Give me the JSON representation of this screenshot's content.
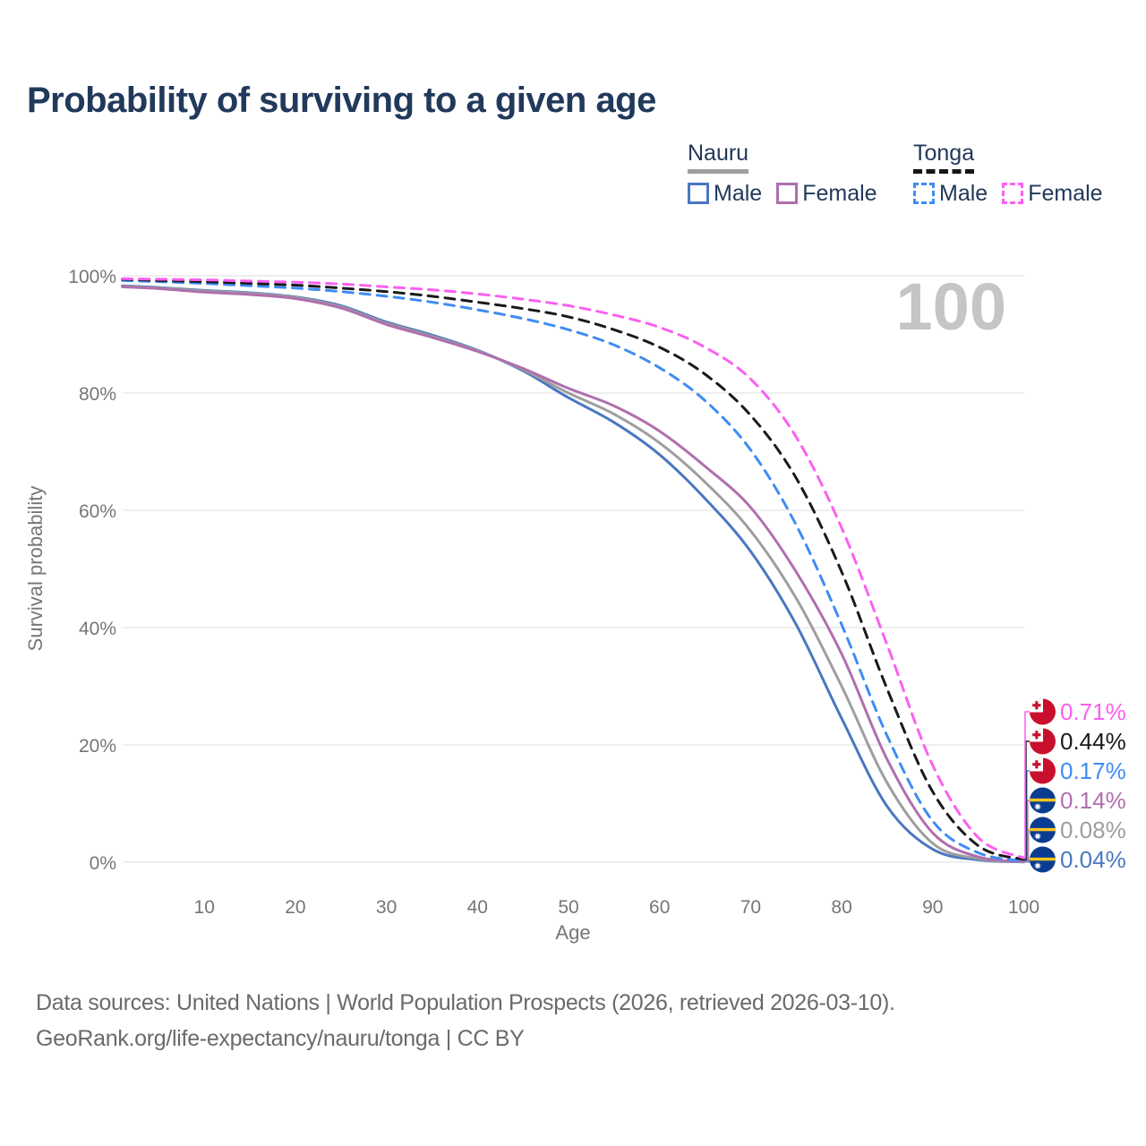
{
  "title": "Probability of surviving to a given age",
  "watermark": "100",
  "legend": {
    "groups": [
      {
        "name": "Nauru",
        "line_style": "solid",
        "underline_color": "#9e9e9e",
        "items": [
          {
            "label": "Male",
            "color": "#4a77c0"
          },
          {
            "label": "Female",
            "color": "#b06fae"
          }
        ]
      },
      {
        "name": "Tonga",
        "line_style": "dashed",
        "underline_color": "#161616",
        "items": [
          {
            "label": "Male",
            "color": "#3f8cf4"
          },
          {
            "label": "Female",
            "color": "#fa60f0"
          }
        ]
      }
    ]
  },
  "chart_data": {
    "type": "line",
    "title": "Probability of surviving to a given age",
    "xlabel": "Age",
    "ylabel": "Survival probability",
    "xlim": [
      1,
      100
    ],
    "ylim": [
      0,
      100
    ],
    "grid": "horizontal",
    "legend_position": "top-right",
    "x_ticks": [
      10,
      20,
      30,
      40,
      50,
      60,
      70,
      80,
      90,
      100
    ],
    "y_ticks": [
      {
        "value": 0,
        "label": "0%"
      },
      {
        "value": 20,
        "label": "20%"
      },
      {
        "value": 40,
        "label": "40%"
      },
      {
        "value": 60,
        "label": "60%"
      },
      {
        "value": 80,
        "label": "80%"
      },
      {
        "value": 100,
        "label": "100%"
      }
    ],
    "ages": [
      1,
      5,
      10,
      15,
      20,
      25,
      30,
      35,
      40,
      45,
      50,
      55,
      60,
      65,
      70,
      75,
      80,
      85,
      90,
      95,
      100
    ],
    "series": [
      {
        "name": "Nauru — Male",
        "country": "Nauru",
        "sex": "Male",
        "color": "#4a77c0",
        "dash": "solid",
        "flag": "nauru",
        "end_label": "0.04%",
        "row": 5,
        "values": [
          98.3,
          98.0,
          97.5,
          97.1,
          96.4,
          94.9,
          92.1,
          89.9,
          87.3,
          83.8,
          79.2,
          75.0,
          69.5,
          62.0,
          53.0,
          40.5,
          24.5,
          9.5,
          2.2,
          0.4,
          0.04
        ]
      },
      {
        "name": "Nauru",
        "country": "Nauru",
        "sex": "Both",
        "color": "#9e9e9e",
        "dash": "solid",
        "flag": "nauru",
        "end_label": "0.08%",
        "row": 4,
        "values": [
          98.2,
          97.9,
          97.4,
          97.0,
          96.3,
          94.7,
          91.9,
          89.7,
          87.2,
          84.0,
          80.0,
          76.4,
          71.5,
          64.8,
          56.5,
          45.0,
          30.0,
          13.5,
          3.2,
          0.6,
          0.08
        ]
      },
      {
        "name": "Nauru — Female",
        "country": "Nauru",
        "sex": "Female",
        "color": "#b06fae",
        "dash": "solid",
        "flag": "nauru",
        "end_label": "0.14%",
        "row": 3,
        "values": [
          98.1,
          97.8,
          97.2,
          96.8,
          96.1,
          94.5,
          91.7,
          89.5,
          87.1,
          84.2,
          80.8,
          77.8,
          73.5,
          67.5,
          60.5,
          49.5,
          35.5,
          17.5,
          5.0,
          0.9,
          0.14
        ]
      },
      {
        "name": "Tonga — Male",
        "country": "Tonga",
        "sex": "Male",
        "color": "#3f8cf4",
        "dash": "dashed",
        "flag": "tonga",
        "end_label": "0.17%",
        "row": 2,
        "values": [
          99.2,
          99.0,
          98.7,
          98.3,
          97.9,
          97.3,
          96.5,
          95.5,
          94.2,
          92.7,
          90.8,
          88.2,
          84.3,
          78.7,
          70.3,
          57.5,
          40.5,
          21.5,
          7.0,
          1.6,
          0.17
        ]
      },
      {
        "name": "Tonga",
        "country": "Tonga",
        "sex": "Both",
        "color": "#1a1a1a",
        "dash": "dashed",
        "flag": "tonga",
        "end_label": "0.44%",
        "row": 1,
        "values": [
          99.4,
          99.2,
          99.0,
          98.7,
          98.4,
          97.9,
          97.3,
          96.5,
          95.5,
          94.4,
          93.0,
          90.8,
          87.8,
          83.2,
          76.2,
          65.5,
          49.5,
          29.5,
          12.0,
          2.8,
          0.44
        ]
      },
      {
        "name": "Tonga — Female",
        "country": "Tonga",
        "sex": "Female",
        "color": "#fa60f0",
        "dash": "dashed",
        "flag": "tonga",
        "end_label": "0.71%",
        "row": 0,
        "values": [
          99.5,
          99.4,
          99.3,
          99.1,
          98.9,
          98.6,
          98.1,
          97.6,
          96.9,
          96.0,
          94.9,
          93.3,
          91.2,
          87.8,
          82.4,
          72.5,
          57.0,
          37.0,
          16.5,
          4.2,
          0.71
        ]
      }
    ],
    "flag_colors": {
      "tonga_red": "#c8102e",
      "nauru_blue": "#0a3d91",
      "nauru_yellow": "#ffc61e",
      "star_white": "#ffffff"
    }
  },
  "source": {
    "line1": "Data sources: United Nations | World Population Prospects (2026, retrieved 2026-03-10).",
    "line2": "GeoRank.org/life-expectancy/nauru/tonga | CC BY"
  }
}
